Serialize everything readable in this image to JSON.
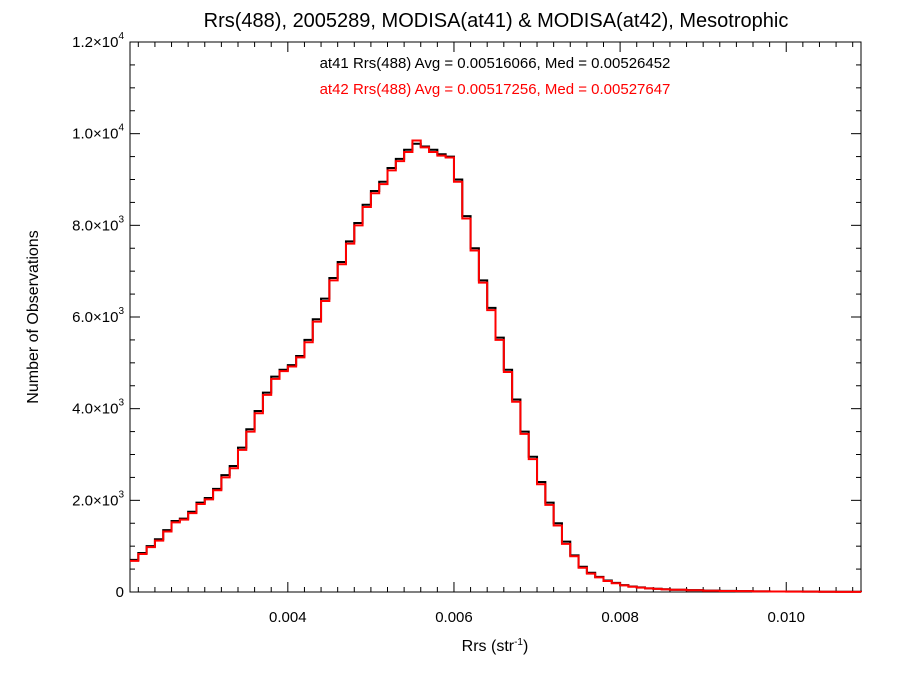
{
  "chart_data": {
    "type": "line",
    "subtype": "step-histogram",
    "title": "Rrs(488), 2005289, MODISA(at41) & MODISA(at42), Mesotrophic",
    "xlabel": "Rrs (str",
    "xlabel_sup": "-1",
    "xlabel_close": ")",
    "ylabel": "Number of Observations",
    "xlim": [
      0.0021,
      0.0109
    ],
    "ylim": [
      0,
      12000
    ],
    "grid": false,
    "xticks": [
      {
        "value": 0.004,
        "label": "0.004"
      },
      {
        "value": 0.006,
        "label": "0.006"
      },
      {
        "value": 0.008,
        "label": "0.008"
      },
      {
        "value": 0.01,
        "label": "0.010"
      }
    ],
    "yticks": [
      {
        "value": 0,
        "mant": "0",
        "exp": ""
      },
      {
        "value": 2000,
        "mant": "2.0×10",
        "exp": "3"
      },
      {
        "value": 4000,
        "mant": "4.0×10",
        "exp": "3"
      },
      {
        "value": 6000,
        "mant": "6.0×10",
        "exp": "3"
      },
      {
        "value": 8000,
        "mant": "8.0×10",
        "exp": "3"
      },
      {
        "value": 10000,
        "mant": "1.0×10",
        "exp": "4"
      },
      {
        "value": 12000,
        "mant": "1.2×10",
        "exp": "4"
      }
    ],
    "annotations": [
      {
        "text": "at41 Rrs(488) Avg = 0.00516066, Med = 0.00526452",
        "color": "#000000"
      },
      {
        "text": "at42 Rrs(488) Avg = 0.00517256, Med = 0.00527647",
        "color": "#ff0000"
      }
    ],
    "series": [
      {
        "color": "#000000",
        "x": [
          0.0021,
          0.0022,
          0.0023,
          0.0024,
          0.0025,
          0.0026,
          0.0027,
          0.0028,
          0.0029,
          0.003,
          0.0031,
          0.0032,
          0.0033,
          0.0034,
          0.0035,
          0.0036,
          0.0037,
          0.0038,
          0.0039,
          0.004,
          0.0041,
          0.0042,
          0.0043,
          0.0044,
          0.0045,
          0.0046,
          0.0047,
          0.0048,
          0.0049,
          0.005,
          0.0051,
          0.0052,
          0.0053,
          0.0054,
          0.0055,
          0.0056,
          0.0057,
          0.0058,
          0.0059,
          0.006,
          0.0061,
          0.0062,
          0.0063,
          0.0064,
          0.0065,
          0.0066,
          0.0067,
          0.0068,
          0.0069,
          0.007,
          0.0071,
          0.0072,
          0.0073,
          0.0074,
          0.0075,
          0.0076,
          0.0077,
          0.0078,
          0.0079,
          0.008,
          0.0081,
          0.0082,
          0.0083,
          0.0084,
          0.0085,
          0.0086,
          0.0088,
          0.009,
          0.0092,
          0.0094,
          0.0096,
          0.0098,
          0.01,
          0.0102,
          0.0104,
          0.0106,
          0.0109
        ],
        "y": [
          700,
          850,
          1000,
          1150,
          1350,
          1550,
          1600,
          1750,
          1950,
          2050,
          2250,
          2550,
          2750,
          3150,
          3550,
          3950,
          4350,
          4700,
          4850,
          4950,
          5150,
          5500,
          5950,
          6400,
          6850,
          7200,
          7650,
          8050,
          8450,
          8750,
          8950,
          9250,
          9450,
          9650,
          9780,
          9720,
          9650,
          9550,
          9500,
          9000,
          8200,
          7500,
          6800,
          6200,
          5550,
          4850,
          4200,
          3500,
          2950,
          2400,
          1950,
          1500,
          1100,
          800,
          550,
          420,
          330,
          250,
          200,
          150,
          120,
          100,
          80,
          70,
          60,
          50,
          40,
          30,
          25,
          20,
          15,
          12,
          10,
          8,
          6,
          5,
          4
        ]
      },
      {
        "color": "#ff0000",
        "x": [
          0.0021,
          0.0022,
          0.0023,
          0.0024,
          0.0025,
          0.0026,
          0.0027,
          0.0028,
          0.0029,
          0.003,
          0.0031,
          0.0032,
          0.0033,
          0.0034,
          0.0035,
          0.0036,
          0.0037,
          0.0038,
          0.0039,
          0.004,
          0.0041,
          0.0042,
          0.0043,
          0.0044,
          0.0045,
          0.0046,
          0.0047,
          0.0048,
          0.0049,
          0.005,
          0.0051,
          0.0052,
          0.0053,
          0.0054,
          0.0055,
          0.0056,
          0.0057,
          0.0058,
          0.0059,
          0.006,
          0.0061,
          0.0062,
          0.0063,
          0.0064,
          0.0065,
          0.0066,
          0.0067,
          0.0068,
          0.0069,
          0.007,
          0.0071,
          0.0072,
          0.0073,
          0.0074,
          0.0075,
          0.0076,
          0.0077,
          0.0078,
          0.0079,
          0.008,
          0.0081,
          0.0082,
          0.0083,
          0.0084,
          0.0085,
          0.0086,
          0.0088,
          0.009,
          0.0092,
          0.0094,
          0.0096,
          0.0098,
          0.01,
          0.0102,
          0.0104,
          0.0106,
          0.0109
        ],
        "y": [
          680,
          830,
          980,
          1120,
          1320,
          1520,
          1580,
          1720,
          1920,
          2020,
          2220,
          2500,
          2700,
          3100,
          3500,
          3900,
          4300,
          4650,
          4820,
          4920,
          5120,
          5450,
          5900,
          6350,
          6800,
          7150,
          7600,
          8000,
          8400,
          8700,
          8900,
          9200,
          9400,
          9600,
          9850,
          9700,
          9600,
          9520,
          9480,
          8950,
          8150,
          7450,
          6750,
          6150,
          5500,
          4800,
          4150,
          3450,
          2900,
          2350,
          1900,
          1450,
          1050,
          780,
          530,
          400,
          320,
          240,
          190,
          145,
          115,
          95,
          78,
          68,
          58,
          48,
          38,
          28,
          23,
          18,
          14,
          11,
          9,
          7,
          5,
          4,
          3
        ]
      }
    ]
  }
}
